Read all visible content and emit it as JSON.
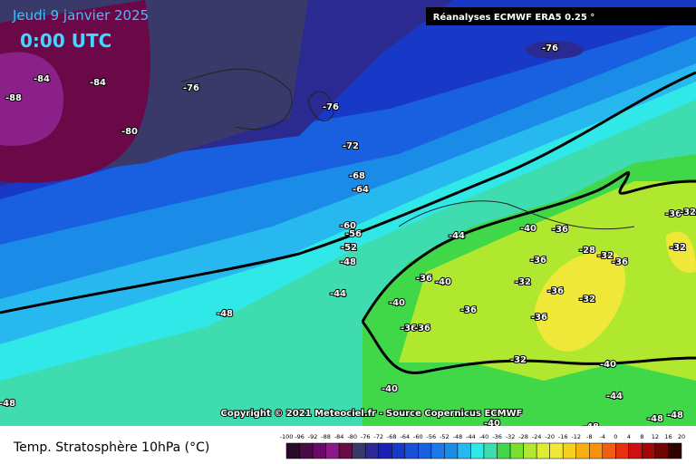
{
  "header": {
    "date": "Jeudi 9 janvier 2025",
    "time": "0:00 UTC",
    "source": "Réanalyses ECMWF ERA5 0.25 °"
  },
  "copyright": "Copyright © 2021 Meteociel.fr - Source Copernicus ECMWF",
  "footer": {
    "title": "Temp. Stratosphère 10hPa (°C)"
  },
  "contour_labels": [
    -88,
    -84,
    -84,
    -80,
    -76,
    -76,
    -76,
    -72,
    -68,
    -64,
    -60,
    -56,
    -52,
    -48,
    -44,
    -48,
    -48,
    -40,
    -44,
    -40,
    -36,
    -36,
    -32,
    -28,
    -32,
    -36,
    -32,
    -36,
    -36,
    -40,
    -32,
    -36,
    -32,
    -40,
    -36,
    -36,
    -36,
    -36,
    -32,
    -40,
    -44,
    -48,
    -48,
    -48,
    -40
  ],
  "legend": {
    "labels": [
      -100,
      -96,
      -92,
      -88,
      -84,
      -80,
      -76,
      -72,
      -68,
      -64,
      -60,
      -56,
      -52,
      -48,
      -44,
      -40,
      -36,
      -32,
      -28,
      -24,
      -20,
      -16,
      -12,
      -8,
      -4,
      0,
      4,
      8,
      12,
      16,
      20
    ],
    "colors": [
      "#2a0a2a",
      "#4a0a48",
      "#6a0a68",
      "#8a1a88",
      "#6a0848",
      "#3a3a6a",
      "#2a2a90",
      "#1a20b0",
      "#1838c8",
      "#1850d8",
      "#1860e0",
      "#1a78e8",
      "#1a8ce8",
      "#28b8f0",
      "#30e8e8",
      "#3fdcb0",
      "#40d848",
      "#78e030",
      "#b0e830",
      "#e0ec30",
      "#f0e838",
      "#f8d020",
      "#f8b010",
      "#f89010",
      "#f06010",
      "#e83010",
      "#d01010",
      "#a00808",
      "#700404",
      "#300000"
    ]
  }
}
